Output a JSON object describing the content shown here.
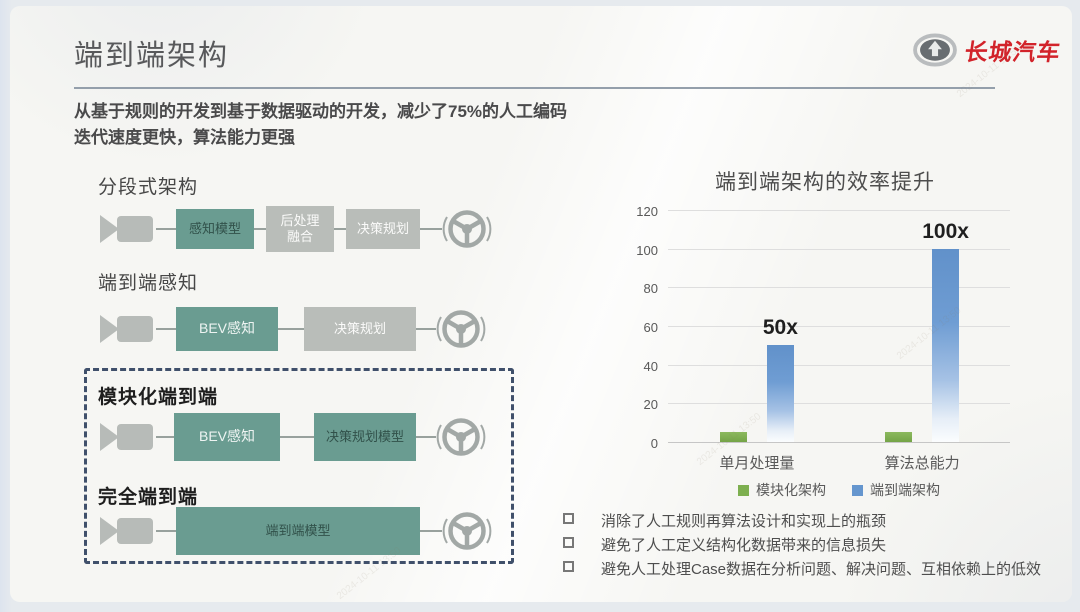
{
  "slide": {
    "title": "端到端架构",
    "subtitle_line1": "从基于规则的开发到基于数据驱动的开发，减少了75%的人工编码",
    "subtitle_line2": "迭代速度更快，算法能力更强"
  },
  "logo": {
    "brand": "长城汽车",
    "brand_color": "#d2232a"
  },
  "architectures": [
    {
      "title": "分段式架构",
      "boxes": [
        {
          "label": "感知模型"
        },
        {
          "label_line1": "后处理",
          "label_line2": "融合"
        },
        {
          "label": "决策规划"
        }
      ]
    },
    {
      "title": "端到端感知",
      "boxes": [
        {
          "label": "BEV感知"
        },
        {
          "label": "决策规划"
        }
      ]
    },
    {
      "title": "模块化端到端",
      "boxes": [
        {
          "label": "BEV感知"
        },
        {
          "label": "决策规划模型"
        }
      ]
    },
    {
      "title": "完全端到端",
      "boxes": [
        {
          "label": "端到端模型"
        }
      ]
    }
  ],
  "icons": {
    "camera": "camera-icon",
    "steering_wheel": "steering-wheel-icon"
  },
  "colors": {
    "teal_box": "#6a9c91",
    "gray_box": "#b9bdb9",
    "dashed_border": "#40506b",
    "accent_red": "#d2232a"
  },
  "chart_data": {
    "type": "bar",
    "title": "端到端架构的效率提升",
    "categories": [
      "单月处理量",
      "算法总能力"
    ],
    "series": [
      {
        "name": "模块化架构",
        "values": [
          5,
          5
        ],
        "color": "#7daf4f",
        "data_labels": [
          "",
          ""
        ]
      },
      {
        "name": "端到端架构",
        "values": [
          50,
          100
        ],
        "color": "#6596ce",
        "data_labels": [
          "50x",
          "100x"
        ]
      }
    ],
    "ylim": [
      0,
      120
    ],
    "yticks": [
      0,
      20,
      40,
      60,
      80,
      100,
      120
    ],
    "grid": true,
    "legend_position": "bottom"
  },
  "bullets": {
    "marker": "□",
    "items": [
      "消除了人工规则再算法设计和实现上的瓶颈",
      "避免了人工定义结构化数据带来的信息损失",
      "避免人工处理Case数据在分析问题、解决问题、互相依赖上的低效"
    ]
  },
  "watermark": {
    "text": "2024-10-11 13:50"
  }
}
